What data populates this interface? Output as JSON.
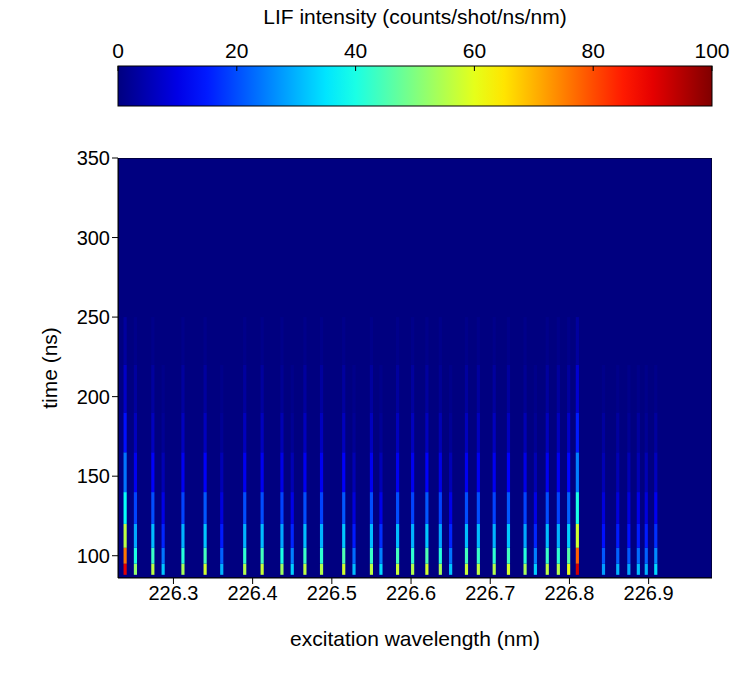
{
  "chart_data": {
    "type": "heatmap",
    "xlabel": "excitation wavelength (nm)",
    "ylabel": "time (ns)",
    "xlim": [
      226.23,
      226.98
    ],
    "xticks": [
      226.3,
      226.4,
      226.5,
      226.6,
      226.7,
      226.8,
      226.9
    ],
    "ylim": [
      86,
      350
    ],
    "yticks": [
      100,
      150,
      200,
      250,
      300,
      350
    ],
    "colorbar": {
      "label": "LIF intensity (counts/shot/ns/nm)",
      "lim": [
        0,
        100
      ],
      "ticks": [
        0,
        20,
        40,
        60,
        80,
        100
      ]
    },
    "y_bins": [
      88,
      95,
      105,
      120,
      140,
      165,
      190,
      220,
      250
    ],
    "lines": [
      {
        "x": [
          226.237,
          226.241
        ],
        "values": [
          90,
          76,
          56,
          38,
          24,
          14,
          7,
          3
        ]
      },
      {
        "x": [
          226.25,
          226.254
        ],
        "values": [
          52,
          40,
          29,
          19,
          11,
          6,
          3,
          1
        ]
      },
      {
        "x": [
          226.272,
          226.276
        ],
        "values": [
          56,
          43,
          31,
          20,
          12,
          6,
          3,
          1
        ]
      },
      {
        "x": [
          226.285,
          226.289
        ],
        "values": [
          32,
          24,
          16,
          10,
          5,
          2,
          1,
          0
        ]
      },
      {
        "x": [
          226.31,
          226.314
        ],
        "values": [
          54,
          41,
          30,
          19,
          11,
          6,
          3,
          1
        ]
      },
      {
        "x": [
          226.338,
          226.342
        ],
        "values": [
          58,
          44,
          32,
          21,
          12,
          6,
          3,
          1
        ]
      },
      {
        "x": [
          226.359,
          226.363
        ],
        "values": [
          30,
          22,
          15,
          9,
          5,
          2,
          1,
          0
        ]
      },
      {
        "x": [
          226.388,
          226.392
        ],
        "values": [
          55,
          42,
          30,
          20,
          11,
          6,
          3,
          1
        ]
      },
      {
        "x": [
          226.41,
          226.414
        ],
        "values": [
          57,
          44,
          31,
          20,
          11,
          6,
          3,
          1
        ]
      },
      {
        "x": [
          226.435,
          226.439
        ],
        "values": [
          53,
          40,
          29,
          19,
          10,
          5,
          2,
          1
        ]
      },
      {
        "x": [
          226.448,
          226.452
        ],
        "values": [
          33,
          25,
          16,
          10,
          5,
          2,
          1,
          0
        ]
      },
      {
        "x": [
          226.464,
          226.468
        ],
        "values": [
          56,
          43,
          31,
          20,
          11,
          6,
          3,
          1
        ]
      },
      {
        "x": [
          226.485,
          226.489
        ],
        "values": [
          55,
          42,
          30,
          19,
          11,
          6,
          3,
          1
        ]
      },
      {
        "x": [
          226.513,
          226.517
        ],
        "values": [
          58,
          45,
          32,
          21,
          12,
          6,
          3,
          1
        ]
      },
      {
        "x": [
          226.526,
          226.53
        ],
        "values": [
          31,
          23,
          15,
          9,
          5,
          2,
          1,
          0
        ]
      },
      {
        "x": [
          226.548,
          226.552
        ],
        "values": [
          56,
          43,
          31,
          20,
          11,
          6,
          3,
          1
        ]
      },
      {
        "x": [
          226.56,
          226.564
        ],
        "values": [
          34,
          25,
          17,
          10,
          5,
          2,
          1,
          0
        ]
      },
      {
        "x": [
          226.581,
          226.585
        ],
        "values": [
          57,
          44,
          31,
          20,
          11,
          6,
          3,
          1
        ]
      },
      {
        "x": [
          226.6,
          226.604
        ],
        "values": [
          55,
          42,
          30,
          19,
          11,
          6,
          3,
          1
        ]
      },
      {
        "x": [
          226.618,
          226.622
        ],
        "values": [
          58,
          45,
          32,
          21,
          12,
          6,
          3,
          1
        ]
      },
      {
        "x": [
          226.635,
          226.639
        ],
        "values": [
          54,
          41,
          29,
          19,
          10,
          5,
          2,
          1
        ]
      },
      {
        "x": [
          226.648,
          226.652
        ],
        "values": [
          32,
          24,
          16,
          10,
          5,
          2,
          1,
          0
        ]
      },
      {
        "x": [
          226.668,
          226.672
        ],
        "values": [
          57,
          44,
          31,
          20,
          11,
          6,
          3,
          1
        ]
      },
      {
        "x": [
          226.683,
          226.687
        ],
        "values": [
          56,
          43,
          31,
          20,
          11,
          6,
          3,
          1
        ]
      },
      {
        "x": [
          226.703,
          226.707
        ],
        "values": [
          55,
          42,
          30,
          19,
          11,
          6,
          3,
          1
        ]
      },
      {
        "x": [
          226.721,
          226.725
        ],
        "values": [
          58,
          44,
          32,
          21,
          12,
          6,
          3,
          1
        ]
      },
      {
        "x": [
          226.742,
          226.746
        ],
        "values": [
          54,
          41,
          29,
          19,
          10,
          5,
          2,
          1
        ]
      },
      {
        "x": [
          226.755,
          226.759
        ],
        "values": [
          33,
          25,
          16,
          10,
          5,
          2,
          1,
          0
        ]
      },
      {
        "x": [
          226.77,
          226.774
        ],
        "values": [
          56,
          43,
          31,
          20,
          11,
          6,
          3,
          1
        ]
      },
      {
        "x": [
          226.784,
          226.788
        ],
        "values": [
          55,
          42,
          30,
          19,
          11,
          6,
          3,
          1
        ]
      },
      {
        "x": [
          226.797,
          226.801
        ],
        "values": [
          60,
          46,
          33,
          22,
          13,
          7,
          3,
          1
        ]
      },
      {
        "x": [
          226.808,
          226.812
        ],
        "values": [
          92,
          78,
          58,
          40,
          25,
          15,
          8,
          3
        ]
      },
      {
        "x": [
          226.841,
          226.845
        ],
        "values": [
          28,
          21,
          14,
          9,
          5,
          3,
          1,
          0
        ]
      },
      {
        "x": [
          226.859,
          226.863
        ],
        "values": [
          30,
          22,
          15,
          9,
          5,
          3,
          1,
          0
        ]
      },
      {
        "x": [
          226.873,
          226.877
        ],
        "values": [
          29,
          21,
          14,
          9,
          5,
          2,
          1,
          0
        ]
      },
      {
        "x": [
          226.885,
          226.889
        ],
        "values": [
          31,
          23,
          15,
          10,
          5,
          3,
          1,
          0
        ]
      },
      {
        "x": [
          226.895,
          226.899
        ],
        "values": [
          30,
          22,
          15,
          9,
          5,
          2,
          1,
          0
        ]
      },
      {
        "x": [
          226.907,
          226.911
        ],
        "values": [
          34,
          26,
          17,
          11,
          6,
          3,
          1,
          0
        ]
      }
    ]
  }
}
